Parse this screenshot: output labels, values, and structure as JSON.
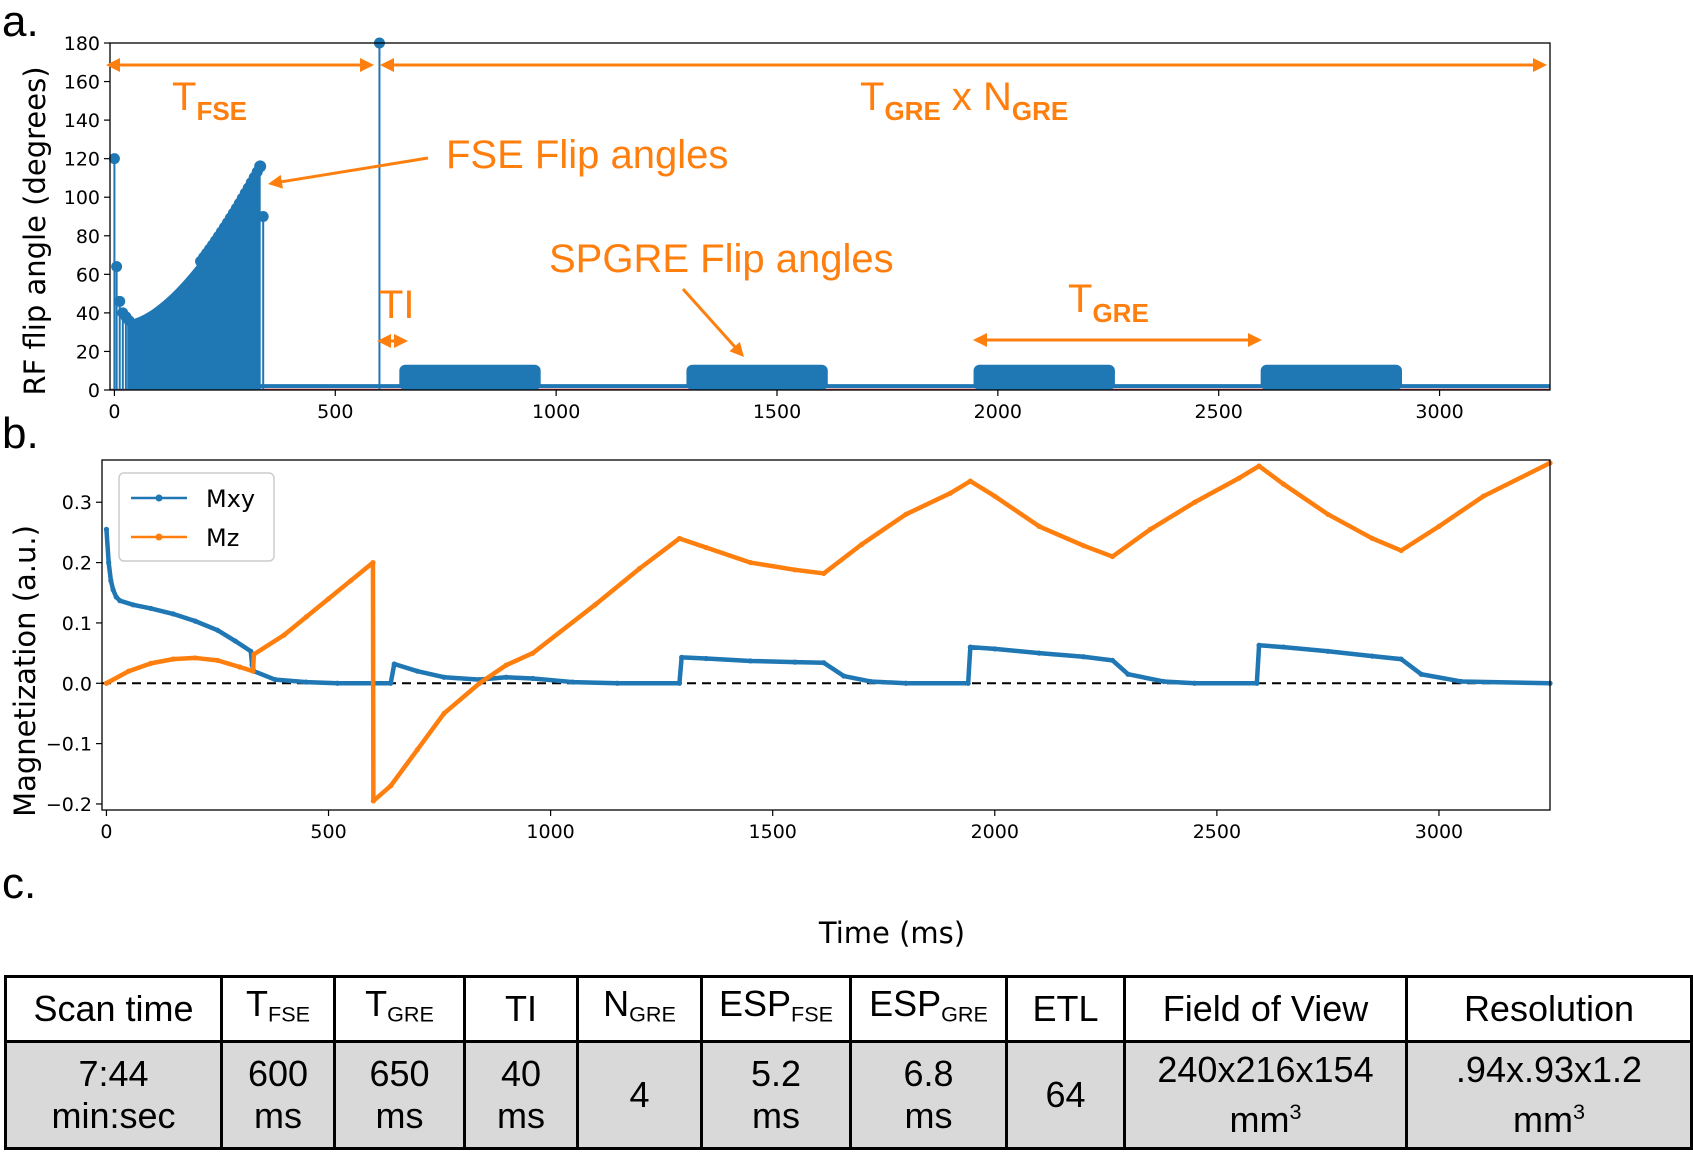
{
  "panels": {
    "a": "a.",
    "b": "b.",
    "c": "c."
  },
  "colors": {
    "blue": "#1f77b4",
    "orange": "#ff7f0e",
    "table_value_bg": "#d9d9d9",
    "axis_line_red": "#d62728"
  },
  "chart_data": [
    {
      "type": "stem",
      "id": "rf-flip-angles",
      "ylabel": "RF flip angle (degrees)",
      "xlabel": "",
      "xlim": [
        -10,
        3250
      ],
      "ylim": [
        0,
        180
      ],
      "xticks": [
        0,
        500,
        1000,
        1500,
        2000,
        2500,
        3000
      ],
      "yticks": [
        0,
        20,
        40,
        60,
        80,
        100,
        120,
        140,
        160,
        180
      ],
      "fse_stems": [
        [
          0,
          120
        ],
        [
          5,
          64
        ],
        [
          12,
          46
        ],
        [
          19,
          40
        ],
        [
          26,
          38
        ],
        [
          33,
          36
        ]
      ],
      "fse_train": {
        "start_ms": 30,
        "end_ms": 330,
        "start_deg": 36,
        "end_deg": 116,
        "final_deg": 90
      },
      "inversion_pulse": {
        "t_ms": 600,
        "deg": 180
      },
      "gre_blocks": [
        {
          "start_ms": 645,
          "end_ms": 965,
          "deg": 10
        },
        {
          "start_ms": 1295,
          "end_ms": 1615,
          "deg": 10
        },
        {
          "start_ms": 1945,
          "end_ms": 2265,
          "deg": 10
        },
        {
          "start_ms": 2595,
          "end_ms": 2915,
          "deg": 10
        }
      ],
      "annotations": {
        "t_fse_main": "T",
        "t_fse_sub": "FSE",
        "t_gre_main": "T",
        "t_gre_sub": "GRE",
        "times": " x ",
        "n_gre_main": "N",
        "n_gre_sub": "GRE",
        "fse_flip": "FSE Flip angles",
        "spgre_flip": "SPGRE Flip angles",
        "ti": "TI",
        "tgre_main": "T",
        "tgre_sub": "GRE"
      }
    },
    {
      "type": "line",
      "id": "magnetization",
      "xlabel": "Time (ms)",
      "ylabel": "Magnetization (a.u.)",
      "xlim": [
        -10,
        3250
      ],
      "ylim": [
        -0.21,
        0.37
      ],
      "xticks": [
        0,
        500,
        1000,
        1500,
        2000,
        2500,
        3000
      ],
      "yticks": [
        -0.2,
        -0.1,
        0.0,
        0.1,
        0.2,
        0.3
      ],
      "yticklabels": [
        "−0.2",
        "−0.1",
        "0.0",
        "0.1",
        "0.2",
        "0.3"
      ],
      "reference_line": 0,
      "legend": [
        {
          "name": "Mxy",
          "color": "#1f77b4"
        },
        {
          "name": "Mz",
          "color": "#ff7f0e"
        }
      ],
      "series": [
        {
          "name": "Mxy",
          "points": [
            [
              0,
              0.255
            ],
            [
              5,
              0.2
            ],
            [
              10,
              0.17
            ],
            [
              15,
              0.155
            ],
            [
              22,
              0.143
            ],
            [
              30,
              0.137
            ],
            [
              60,
              0.13
            ],
            [
              100,
              0.124
            ],
            [
              150,
              0.115
            ],
            [
              200,
              0.103
            ],
            [
              250,
              0.088
            ],
            [
              290,
              0.07
            ],
            [
              325,
              0.053
            ],
            [
              328,
              0.03
            ],
            [
              332,
              0.02
            ],
            [
              380,
              0.006
            ],
            [
              450,
              0.002
            ],
            [
              520,
              0.0
            ],
            [
              640,
              0.0
            ],
            [
              648,
              0.032
            ],
            [
              700,
              0.02
            ],
            [
              760,
              0.01
            ],
            [
              840,
              0.006
            ],
            [
              900,
              0.01
            ],
            [
              960,
              0.008
            ],
            [
              1050,
              0.002
            ],
            [
              1150,
              0.0
            ],
            [
              1290,
              0.0
            ],
            [
              1295,
              0.043
            ],
            [
              1350,
              0.041
            ],
            [
              1450,
              0.037
            ],
            [
              1550,
              0.035
            ],
            [
              1615,
              0.034
            ],
            [
              1660,
              0.012
            ],
            [
              1720,
              0.003
            ],
            [
              1800,
              0.0
            ],
            [
              1940,
              0.0
            ],
            [
              1945,
              0.06
            ],
            [
              2000,
              0.057
            ],
            [
              2100,
              0.05
            ],
            [
              2200,
              0.044
            ],
            [
              2265,
              0.038
            ],
            [
              2300,
              0.015
            ],
            [
              2380,
              0.003
            ],
            [
              2450,
              0.0
            ],
            [
              2590,
              0.0
            ],
            [
              2595,
              0.063
            ],
            [
              2650,
              0.06
            ],
            [
              2750,
              0.053
            ],
            [
              2850,
              0.045
            ],
            [
              2915,
              0.04
            ],
            [
              2960,
              0.015
            ],
            [
              3050,
              0.003
            ],
            [
              3250,
              0.0
            ]
          ]
        },
        {
          "name": "Mz",
          "points": [
            [
              0,
              0.0
            ],
            [
              50,
              0.02
            ],
            [
              100,
              0.033
            ],
            [
              150,
              0.04
            ],
            [
              200,
              0.042
            ],
            [
              250,
              0.038
            ],
            [
              300,
              0.027
            ],
            [
              330,
              0.02
            ],
            [
              332,
              0.048
            ],
            [
              400,
              0.08
            ],
            [
              450,
              0.11
            ],
            [
              500,
              0.14
            ],
            [
              550,
              0.17
            ],
            [
              600,
              0.2
            ],
            [
              601,
              -0.195
            ],
            [
              640,
              -0.17
            ],
            [
              700,
              -0.11
            ],
            [
              760,
              -0.05
            ],
            [
              840,
              0.0
            ],
            [
              900,
              0.03
            ],
            [
              960,
              0.05
            ],
            [
              1100,
              0.13
            ],
            [
              1200,
              0.19
            ],
            [
              1290,
              0.24
            ],
            [
              1350,
              0.225
            ],
            [
              1450,
              0.2
            ],
            [
              1550,
              0.188
            ],
            [
              1615,
              0.182
            ],
            [
              1700,
              0.23
            ],
            [
              1800,
              0.28
            ],
            [
              1900,
              0.315
            ],
            [
              1945,
              0.335
            ],
            [
              2000,
              0.31
            ],
            [
              2100,
              0.26
            ],
            [
              2200,
              0.228
            ],
            [
              2265,
              0.21
            ],
            [
              2350,
              0.255
            ],
            [
              2450,
              0.3
            ],
            [
              2550,
              0.34
            ],
            [
              2595,
              0.36
            ],
            [
              2650,
              0.33
            ],
            [
              2750,
              0.28
            ],
            [
              2850,
              0.24
            ],
            [
              2915,
              0.22
            ],
            [
              3000,
              0.26
            ],
            [
              3100,
              0.31
            ],
            [
              3250,
              0.365
            ]
          ]
        }
      ]
    }
  ],
  "table": {
    "headers": [
      {
        "main": "Scan time"
      },
      {
        "main": "T",
        "sub": "FSE"
      },
      {
        "main": "T",
        "sub": "GRE"
      },
      {
        "main": "TI"
      },
      {
        "main": "N",
        "sub": "GRE"
      },
      {
        "main": "ESP",
        "sub": "FSE"
      },
      {
        "main": "ESP",
        "sub": "GRE"
      },
      {
        "main": "ETL"
      },
      {
        "main": "Field of View"
      },
      {
        "main": "Resolution"
      }
    ],
    "values": [
      {
        "line1": "7:44",
        "line2": "min:sec"
      },
      {
        "line1": "600",
        "line2": "ms"
      },
      {
        "line1": "650",
        "line2": "ms"
      },
      {
        "line1": "40",
        "line2": "ms"
      },
      {
        "line1": "4"
      },
      {
        "line1": "5.2",
        "line2": "ms"
      },
      {
        "line1": "6.8",
        "line2": "ms"
      },
      {
        "line1": "64"
      },
      {
        "line1": "240x216x154",
        "line2": "mm",
        "sup": "3"
      },
      {
        "line1": ".94x.93x1.2",
        "line2": "mm",
        "sup": "3"
      }
    ]
  }
}
